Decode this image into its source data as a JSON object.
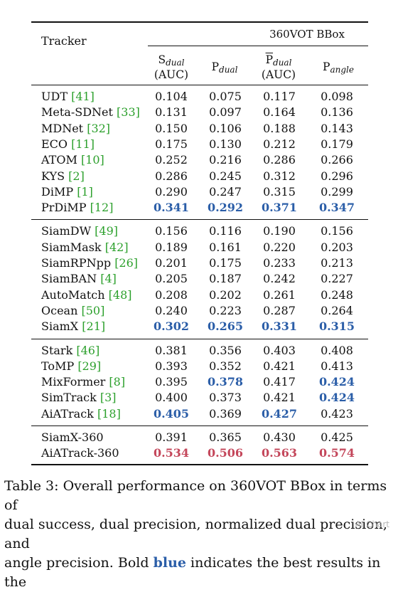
{
  "header": {
    "tracker": "Tracker",
    "group": "360VOT BBox",
    "col1": {
      "main": "S",
      "sub": "dual",
      "note": "(AUC)"
    },
    "col2": {
      "main": "P",
      "sub": "dual"
    },
    "col3": {
      "main": "P",
      "sub": "dual",
      "note": "(AUC)"
    },
    "col4": {
      "main": "P",
      "sub": "angle"
    }
  },
  "groups": [
    {
      "rows": [
        {
          "name": "UDT",
          "cite": "[41]",
          "values": [
            "0.104",
            "0.075",
            "0.117",
            "0.098"
          ],
          "style": [
            "",
            "",
            "",
            ""
          ]
        },
        {
          "name": "Meta-SDNet",
          "cite": "[33]",
          "values": [
            "0.131",
            "0.097",
            "0.164",
            "0.136"
          ],
          "style": [
            "",
            "",
            "",
            ""
          ]
        },
        {
          "name": "MDNet",
          "cite": "[32]",
          "values": [
            "0.150",
            "0.106",
            "0.188",
            "0.143"
          ],
          "style": [
            "",
            "",
            "",
            ""
          ]
        },
        {
          "name": "ECO",
          "cite": "[11]",
          "values": [
            "0.175",
            "0.130",
            "0.212",
            "0.179"
          ],
          "style": [
            "",
            "",
            "",
            ""
          ]
        },
        {
          "name": "ATOM",
          "cite": "[10]",
          "values": [
            "0.252",
            "0.216",
            "0.286",
            "0.266"
          ],
          "style": [
            "",
            "",
            "",
            ""
          ]
        },
        {
          "name": "KYS",
          "cite": "[2]",
          "values": [
            "0.286",
            "0.245",
            "0.312",
            "0.296"
          ],
          "style": [
            "",
            "",
            "",
            ""
          ]
        },
        {
          "name": "DiMP",
          "cite": "[1]",
          "values": [
            "0.290",
            "0.247",
            "0.315",
            "0.299"
          ],
          "style": [
            "",
            "",
            "",
            ""
          ]
        },
        {
          "name": "PrDiMP",
          "cite": "[12]",
          "values": [
            "0.341",
            "0.292",
            "0.371",
            "0.347"
          ],
          "style": [
            "blue",
            "blue",
            "blue",
            "blue"
          ]
        }
      ]
    },
    {
      "rows": [
        {
          "name": "SiamDW",
          "cite": "[49]",
          "values": [
            "0.156",
            "0.116",
            "0.190",
            "0.156"
          ],
          "style": [
            "",
            "",
            "",
            ""
          ]
        },
        {
          "name": "SiamMask",
          "cite": "[42]",
          "values": [
            "0.189",
            "0.161",
            "0.220",
            "0.203"
          ],
          "style": [
            "",
            "",
            "",
            ""
          ]
        },
        {
          "name": "SiamRPNpp",
          "cite": "[26]",
          "values": [
            "0.201",
            "0.175",
            "0.233",
            "0.213"
          ],
          "style": [
            "",
            "",
            "",
            ""
          ]
        },
        {
          "name": "SiamBAN",
          "cite": "[4]",
          "values": [
            "0.205",
            "0.187",
            "0.242",
            "0.227"
          ],
          "style": [
            "",
            "",
            "",
            ""
          ]
        },
        {
          "name": "AutoMatch",
          "cite": "[48]",
          "values": [
            "0.208",
            "0.202",
            "0.261",
            "0.248"
          ],
          "style": [
            "",
            "",
            "",
            ""
          ]
        },
        {
          "name": "Ocean",
          "cite": "[50]",
          "values": [
            "0.240",
            "0.223",
            "0.287",
            "0.264"
          ],
          "style": [
            "",
            "",
            "",
            ""
          ]
        },
        {
          "name": "SiamX",
          "cite": "[21]",
          "values": [
            "0.302",
            "0.265",
            "0.331",
            "0.315"
          ],
          "style": [
            "blue",
            "blue",
            "blue",
            "blue"
          ]
        }
      ]
    },
    {
      "rows": [
        {
          "name": "Stark",
          "cite": "[46]",
          "values": [
            "0.381",
            "0.356",
            "0.403",
            "0.408"
          ],
          "style": [
            "",
            "",
            "",
            ""
          ]
        },
        {
          "name": "ToMP",
          "cite": "[29]",
          "values": [
            "0.393",
            "0.352",
            "0.421",
            "0.413"
          ],
          "style": [
            "",
            "",
            "",
            ""
          ]
        },
        {
          "name": "MixFormer",
          "cite": "[8]",
          "values": [
            "0.395",
            "0.378",
            "0.417",
            "0.424"
          ],
          "style": [
            "",
            "blue",
            "",
            "blue"
          ]
        },
        {
          "name": "SimTrack",
          "cite": "[3]",
          "values": [
            "0.400",
            "0.373",
            "0.421",
            "0.424"
          ],
          "style": [
            "",
            "",
            "",
            "blue"
          ]
        },
        {
          "name": "AiATrack",
          "cite": "[18]",
          "values": [
            "0.405",
            "0.369",
            "0.427",
            "0.423"
          ],
          "style": [
            "blue",
            "",
            "blue",
            ""
          ]
        }
      ]
    },
    {
      "rows": [
        {
          "name": "SiamX-360",
          "cite": "",
          "values": [
            "0.391",
            "0.365",
            "0.430",
            "0.425"
          ],
          "style": [
            "",
            "",
            "",
            ""
          ]
        },
        {
          "name": "AiATrack-360",
          "cite": "",
          "values": [
            "0.534",
            "0.506",
            "0.563",
            "0.574"
          ],
          "style": [
            "red",
            "red",
            "red",
            "red"
          ]
        }
      ]
    }
  ],
  "caption": {
    "line1": "Table 3: Overall performance on 360VOT BBox in terms of",
    "line2": "dual success, dual precision, normalized dual precision, and",
    "line3_a": "angle precision. Bold ",
    "line3_kw": "blue",
    "line3_b": " indicates the best results in the",
    "watermark": "AI Chart"
  }
}
